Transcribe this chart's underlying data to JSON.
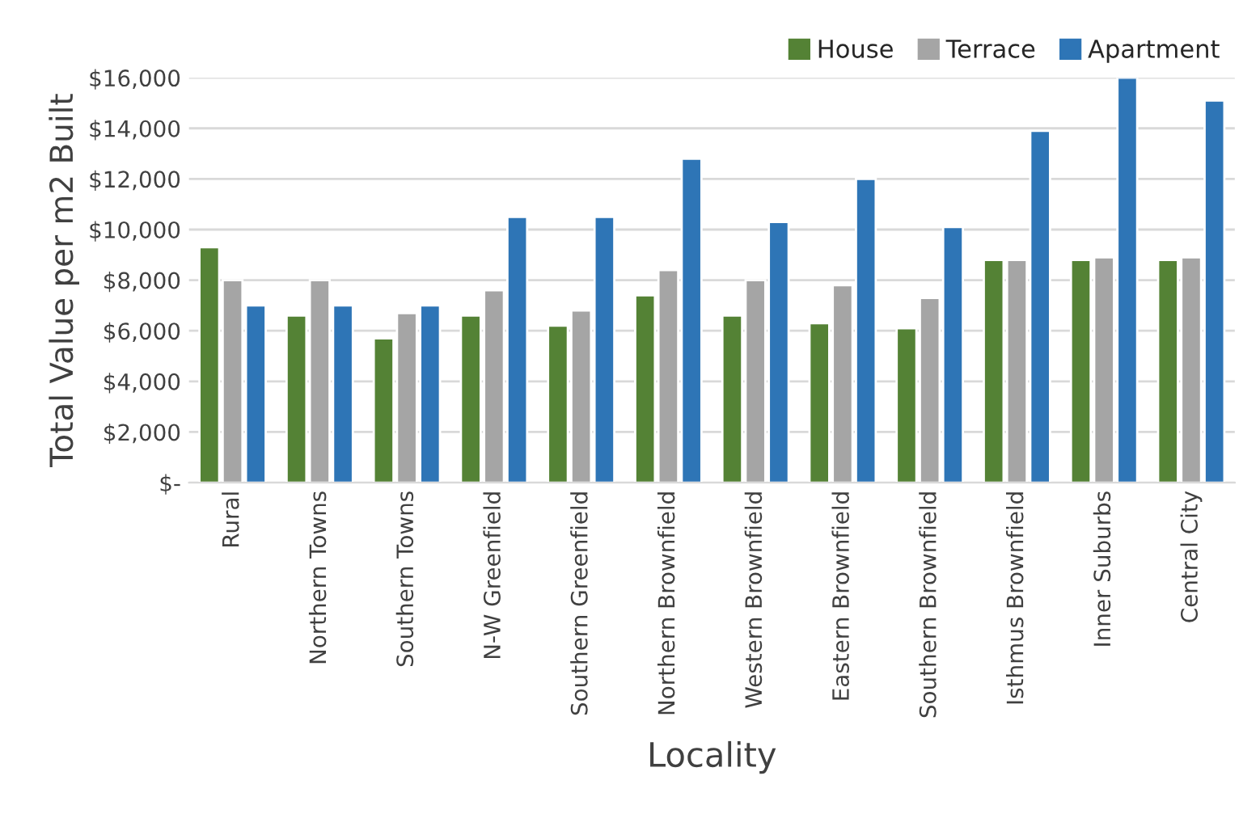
{
  "chart_data": {
    "type": "bar",
    "xlabel": "Locality",
    "ylabel": "Total Value per m2 Built",
    "categories": [
      "Rural",
      "Northern Towns",
      "Southern Towns",
      "N-W Greenfield",
      "Southern Greenfield",
      "Northern Brownfield",
      "Western Brownfield",
      "Eastern Brownfield",
      "Southern Brownfield",
      "Isthmus Brownfield",
      "Inner Suburbs",
      "Central City"
    ],
    "series": [
      {
        "name": "House",
        "color": "#548235",
        "values": [
          9300,
          6600,
          5700,
          6600,
          6200,
          7400,
          6600,
          6300,
          6100,
          8800,
          8800,
          8800
        ]
      },
      {
        "name": "Terrace",
        "color": "#a5a5a5",
        "values": [
          8000,
          8000,
          6700,
          7600,
          6800,
          8400,
          8000,
          7800,
          7300,
          8800,
          8900,
          8900
        ]
      },
      {
        "name": "Apartment",
        "color": "#2e75b6",
        "values": [
          7000,
          7000,
          7000,
          10500,
          10500,
          12800,
          10300,
          12000,
          10100,
          13900,
          16000,
          15100
        ]
      }
    ],
    "ylim": [
      0,
      16000
    ],
    "yticks": [
      {
        "value": 0,
        "label": "$-"
      },
      {
        "value": 2000,
        "label": "$2,000"
      },
      {
        "value": 4000,
        "label": "$4,000"
      },
      {
        "value": 6000,
        "label": "$6,000"
      },
      {
        "value": 8000,
        "label": "$8,000"
      },
      {
        "value": 10000,
        "label": "$10,000"
      },
      {
        "value": 12000,
        "label": "$12,000"
      },
      {
        "value": 14000,
        "label": "$14,000"
      },
      {
        "value": 16000,
        "label": "$16,000"
      }
    ],
    "grid": "y",
    "legend": "top right"
  }
}
